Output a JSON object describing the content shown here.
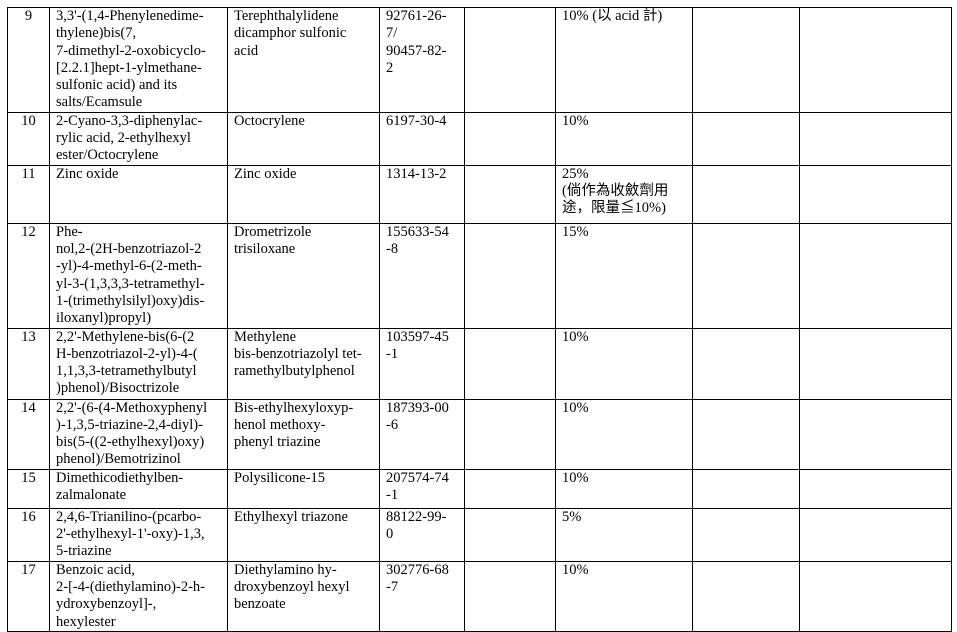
{
  "rows": [
    {
      "no": "9",
      "name": "3,3'-(1,4-Phenylenedime-\nthylene)bis(7,\n7-dimethyl-2-oxobicyclo-\n[2.2.1]hept-1-ylmethane-\nsulfonic acid) and its\nsalts/Ecamsule",
      "inci": "Terephthalylidene\ndicamphor sulfonic\nacid",
      "cas": "92761-26-\n7/\n90457-82-\n2",
      "c4": "",
      "limit": "10% (以 acid 計)",
      "c6": "",
      "c7": ""
    },
    {
      "no": "10",
      "name": "2-Cyano-3,3-diphenylac-\nrylic acid, 2-ethylhexyl\nester/Octocrylene",
      "inci": "Octocrylene",
      "cas": "6197-30-4",
      "c4": "",
      "limit": "10%",
      "c6": "",
      "c7": ""
    },
    {
      "no": "11",
      "name": "Zinc oxide",
      "inci": "Zinc oxide",
      "cas": "1314-13-2",
      "c4": "",
      "limit": "25%\n(倘作為收斂劑用\n途，限量≦10%)",
      "c6": "",
      "c7": ""
    },
    {
      "no": "12",
      "name": "Phe-\nnol,2-(2H-benzotriazol-2\n-yl)-4-methyl-6-(2-meth-\nyl-3-(1,3,3,3-tetramethyl-\n1-(trimethylsilyl)oxy)dis-\niloxanyl)propyl)",
      "inci": "Drometrizole\ntrisiloxane",
      "cas": "155633-54\n-8",
      "c4": "",
      "limit": "15%",
      "c6": "",
      "c7": ""
    },
    {
      "no": "13",
      "name": "2,2'-Methylene-bis(6-(2\nH-benzotriazol-2-yl)-4-(\n1,1,3,3-tetramethylbutyl\n)phenol)/Bisoctrizole",
      "inci": "Methylene\nbis-benzotriazolyl tet-\nramethylbutylphenol",
      "cas": "103597-45\n-1",
      "c4": "",
      "limit": "10%",
      "c6": "",
      "c7": ""
    },
    {
      "no": "14",
      "name": "2,2'-(6-(4-Methoxyphenyl\n)-1,3,5-triazine-2,4-diyl)-\nbis(5-((2-ethylhexyl)oxy)\nphenol)/Bemotrizinol",
      "inci": "Bis-ethylhexyloxyp-\nhenol methoxy-\nphenyl triazine",
      "cas": "187393-00\n-6",
      "c4": "",
      "limit": "10%",
      "c6": "",
      "c7": ""
    },
    {
      "no": "15",
      "name": "Dimethicodiethylben-\nzalmalonate",
      "inci": "Polysilicone-15",
      "cas": "207574-74\n-1",
      "c4": "",
      "limit": "10%",
      "c6": "",
      "c7": ""
    },
    {
      "no": "16",
      "name": "2,4,6-Trianilino-(pcarbo-\n2'-ethylhexyl-1'-oxy)-1,3,\n5-triazine",
      "inci": "Ethylhexyl triazone",
      "cas": "88122-99-\n0",
      "c4": "",
      "limit": "5%",
      "c6": "",
      "c7": ""
    },
    {
      "no": "17",
      "name": "Benzoic acid,\n2-[-4-(diethylamino)-2-h-\nydroxybenzoyl]-,\nhexylester",
      "inci": "Diethylamino hy-\ndroxybenzoyl hexyl\nbenzoate",
      "cas": "302776-68\n-7",
      "c4": "",
      "limit": "10%",
      "c6": "",
      "c7": ""
    }
  ]
}
